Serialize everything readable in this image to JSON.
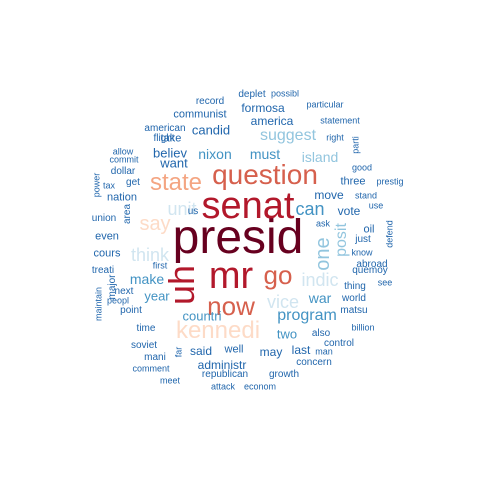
{
  "cloud": {
    "palette": {
      "darkred": "#67001f",
      "red": "#b2182b",
      "coral": "#d6604d",
      "salmon": "#f4a582",
      "peach": "#fddbc7",
      "ice": "#d1e5f0",
      "sky": "#92c5de",
      "mid": "#4393c3",
      "dark": "#2166ac"
    },
    "words": [
      {
        "key": "presid",
        "text": "presid"
      },
      {
        "key": "senat",
        "text": "senat"
      },
      {
        "key": "mr",
        "text": "mr"
      },
      {
        "key": "uh",
        "text": "uh"
      },
      {
        "key": "question",
        "text": "question"
      },
      {
        "key": "now",
        "text": "now"
      },
      {
        "key": "go",
        "text": "go"
      },
      {
        "key": "state",
        "text": "state"
      },
      {
        "key": "kennedi",
        "text": "kennedi"
      },
      {
        "key": "say",
        "text": "say"
      },
      {
        "key": "can",
        "text": "can"
      },
      {
        "key": "one",
        "text": "one"
      },
      {
        "key": "unit",
        "text": "unit"
      },
      {
        "key": "think",
        "text": "think"
      },
      {
        "key": "vice",
        "text": "vice"
      },
      {
        "key": "indic",
        "text": "indic"
      },
      {
        "key": "posit",
        "text": "posit"
      },
      {
        "key": "program",
        "text": "program"
      },
      {
        "key": "suggest",
        "text": "suggest"
      },
      {
        "key": "island",
        "text": "island"
      },
      {
        "key": "make",
        "text": "make"
      },
      {
        "key": "war",
        "text": "war"
      },
      {
        "key": "countri",
        "text": "countri"
      },
      {
        "key": "year",
        "text": "year"
      },
      {
        "key": "nixon",
        "text": "nixon"
      },
      {
        "key": "must",
        "text": "must"
      },
      {
        "key": "two",
        "text": "two"
      },
      {
        "key": "america",
        "text": "america"
      },
      {
        "key": "formosa",
        "text": "formosa"
      },
      {
        "key": "candid",
        "text": "candid"
      },
      {
        "key": "believ",
        "text": "believ"
      },
      {
        "key": "want",
        "text": "want"
      },
      {
        "key": "vote",
        "text": "vote"
      },
      {
        "key": "move",
        "text": "move"
      },
      {
        "key": "three",
        "text": "three"
      },
      {
        "key": "said",
        "text": "said"
      },
      {
        "key": "may",
        "text": "may"
      },
      {
        "key": "last",
        "text": "last"
      },
      {
        "key": "well",
        "text": "well"
      },
      {
        "key": "administr",
        "text": "administr"
      },
      {
        "key": "deplet",
        "text": "deplet"
      },
      {
        "key": "possibl",
        "text": "possibl"
      },
      {
        "key": "record",
        "text": "record"
      },
      {
        "key": "particular",
        "text": "particular"
      },
      {
        "key": "communist",
        "text": "communist"
      },
      {
        "key": "statement",
        "text": "statement"
      },
      {
        "key": "allow",
        "text": "allow"
      },
      {
        "key": "american",
        "text": "american"
      },
      {
        "key": "flight",
        "text": "flight"
      },
      {
        "key": "take",
        "text": "take"
      },
      {
        "key": "right",
        "text": "right"
      },
      {
        "key": "parti",
        "text": "parti"
      },
      {
        "key": "commit",
        "text": "commit"
      },
      {
        "key": "power",
        "text": "power"
      },
      {
        "key": "tax",
        "text": "tax"
      },
      {
        "key": "get",
        "text": "get"
      },
      {
        "key": "dollar",
        "text": "dollar"
      },
      {
        "key": "good",
        "text": "good"
      },
      {
        "key": "prestig",
        "text": "prestig"
      },
      {
        "key": "stand",
        "text": "stand"
      },
      {
        "key": "use",
        "text": "use"
      },
      {
        "key": "nation",
        "text": "nation"
      },
      {
        "key": "area",
        "text": "area"
      },
      {
        "key": "union",
        "text": "union"
      },
      {
        "key": "us",
        "text": "us"
      },
      {
        "key": "even",
        "text": "even"
      },
      {
        "key": "ask",
        "text": "ask"
      },
      {
        "key": "oil",
        "text": "oil"
      },
      {
        "key": "just",
        "text": "just"
      },
      {
        "key": "defend",
        "text": "defend"
      },
      {
        "key": "cours",
        "text": "cours"
      },
      {
        "key": "know",
        "text": "know"
      },
      {
        "key": "first",
        "text": "first"
      },
      {
        "key": "treati",
        "text": "treati"
      },
      {
        "key": "next",
        "text": "next"
      },
      {
        "key": "quemoy",
        "text": "quemoy"
      },
      {
        "key": "thing",
        "text": "thing"
      },
      {
        "key": "abroad",
        "text": "abroad"
      },
      {
        "key": "see",
        "text": "see"
      },
      {
        "key": "maintain",
        "text": "maintain"
      },
      {
        "key": "peopl",
        "text": "peopl"
      },
      {
        "key": "point",
        "text": "point"
      },
      {
        "key": "world",
        "text": "world"
      },
      {
        "key": "matsu",
        "text": "matsu"
      },
      {
        "key": "time",
        "text": "time"
      },
      {
        "key": "also",
        "text": "also"
      },
      {
        "key": "billion",
        "text": "billion"
      },
      {
        "key": "soviet",
        "text": "soviet"
      },
      {
        "key": "far",
        "text": "far"
      },
      {
        "key": "control",
        "text": "control"
      },
      {
        "key": "man",
        "text": "man"
      },
      {
        "key": "mani",
        "text": "mani"
      },
      {
        "key": "concern",
        "text": "concern"
      },
      {
        "key": "comment",
        "text": "comment"
      },
      {
        "key": "republican",
        "text": "republican"
      },
      {
        "key": "growth",
        "text": "growth"
      },
      {
        "key": "meet",
        "text": "meet"
      },
      {
        "key": "attack",
        "text": "attack"
      },
      {
        "key": "econom",
        "text": "econom"
      },
      {
        "key": "major",
        "text": "major"
      }
    ]
  }
}
